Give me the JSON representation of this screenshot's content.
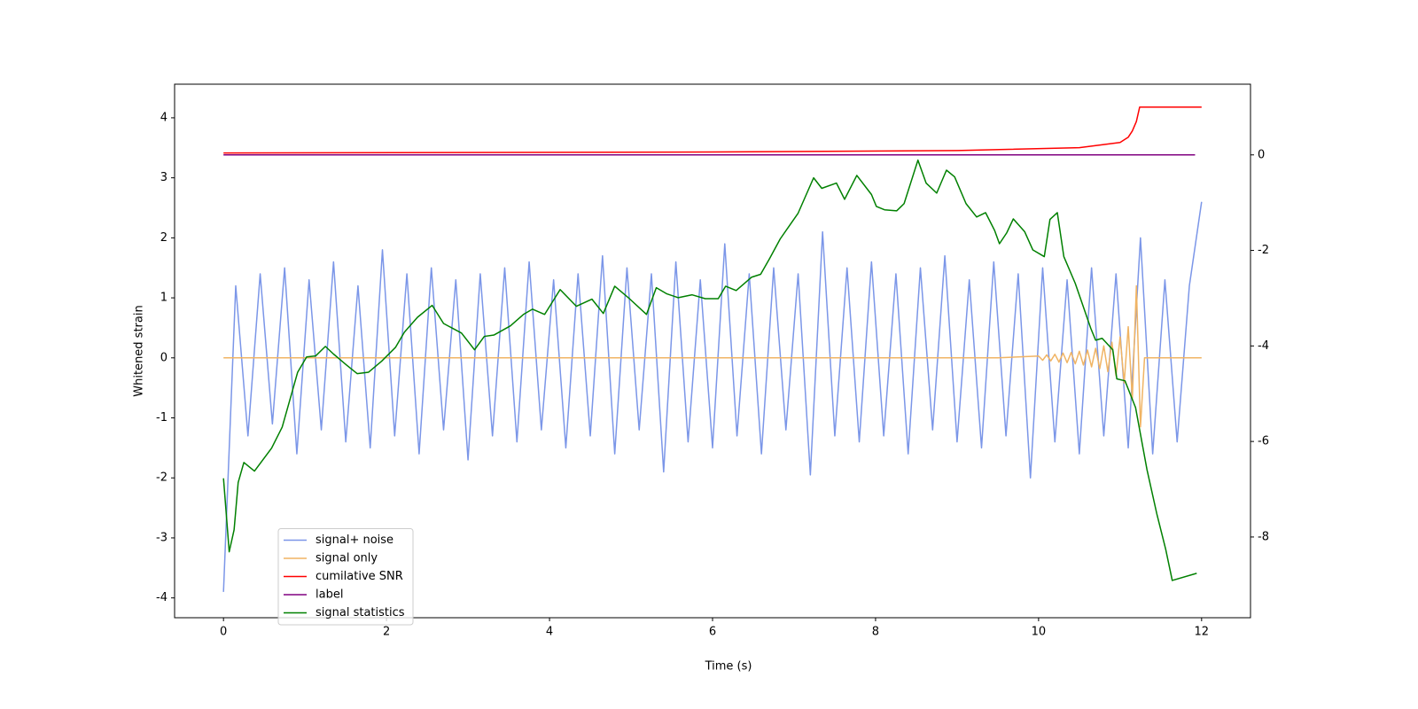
{
  "chart_data": {
    "type": "line",
    "xlabel": "Time (s)",
    "ylabel": "Whitened strain",
    "xlim": [
      -0.6,
      12.6
    ],
    "xticks": [
      0,
      2,
      4,
      6,
      8,
      10,
      12
    ],
    "ylim": [
      -4.33,
      4.56
    ],
    "yticks": [
      -4,
      -3,
      -2,
      -1,
      0,
      1,
      2,
      3,
      4
    ],
    "y2lim": [
      -9.69,
      1.48
    ],
    "y2ticks": [
      -8,
      -6,
      -4,
      -2,
      0
    ],
    "legend": "lower left",
    "series": [
      {
        "name": "signal+ noise",
        "color": "#7b96e8",
        "x": [
          0,
          0.15,
          0.3,
          0.45,
          0.6,
          0.75,
          0.9,
          1.05,
          1.2,
          1.35,
          1.5,
          1.65,
          1.8,
          1.95,
          2.1,
          2.25,
          2.4,
          2.55,
          2.7,
          2.85,
          3,
          3.15,
          3.3,
          3.45,
          3.6,
          3.75,
          3.9,
          4.05,
          4.2,
          4.35,
          4.5,
          4.65,
          4.8,
          4.95,
          5.1,
          5.25,
          5.4,
          5.55,
          5.7,
          5.85,
          6,
          6.15,
          6.3,
          6.45,
          6.6,
          6.75,
          6.9,
          7.05,
          7.2,
          7.35,
          7.5,
          7.65,
          7.8,
          7.95,
          8.1,
          8.25,
          8.4,
          8.55,
          8.7,
          8.85,
          9,
          9.15,
          9.3,
          9.45,
          9.6,
          9.75,
          9.9,
          10.05,
          10.2,
          10.35,
          10.5,
          10.65,
          10.8,
          10.95,
          11.1,
          11.25,
          11.4,
          11.55,
          11.7,
          11.85,
          12
        ],
        "values": [
          -3.9,
          1.2,
          -1.3,
          1.4,
          -1.1,
          1.5,
          -1.6,
          1.3,
          -1.2,
          1.6,
          -1.4,
          1.2,
          -1.5,
          1.8,
          -1.3,
          1.4,
          -1.6,
          1.5,
          -1.2,
          1.3,
          -1.7,
          1.4,
          -1.3,
          1.5,
          -1.4,
          1.6,
          -1.2,
          1.3,
          -1.5,
          1.4,
          -1.3,
          1.7,
          -1.6,
          1.5,
          -1.2,
          1.4,
          -1.9,
          1.6,
          -1.4,
          1.3,
          -1.5,
          1.9,
          -1.3,
          1.4,
          -1.6,
          1.5,
          -1.2,
          1.4,
          -1.95,
          2.1,
          -1.3,
          1.5,
          -1.4,
          1.6,
          -1.3,
          1.4,
          -1.6,
          1.5,
          -1.2,
          1.7,
          -1.4,
          1.3,
          -1.5,
          1.6,
          -1.3,
          1.4,
          -2.0,
          1.5,
          -1.4,
          1.3,
          -1.6,
          1.5,
          -1.3,
          1.4,
          -1.5,
          2.0,
          -1.6,
          1.3,
          -1.4,
          1.2,
          2.6
        ]
      },
      {
        "name": "signal only",
        "color": "#f0b464",
        "x": [
          0,
          9.5,
          10,
          10.05,
          10.1,
          10.15,
          10.2,
          10.25,
          10.3,
          10.35,
          10.4,
          10.45,
          10.5,
          10.55,
          10.6,
          10.65,
          10.7,
          10.75,
          10.8,
          10.85,
          10.9,
          10.95,
          11,
          11.05,
          11.1,
          11.15,
          11.2,
          11.25,
          11.3,
          12
        ],
        "values": [
          0,
          0,
          0.03,
          -0.04,
          0.05,
          -0.05,
          0.06,
          -0.07,
          0.08,
          -0.08,
          0.09,
          -0.1,
          0.11,
          -0.12,
          0.13,
          -0.15,
          0.16,
          -0.18,
          0.2,
          -0.23,
          0.26,
          -0.3,
          0.35,
          -0.42,
          0.52,
          -0.7,
          1.2,
          -1.15,
          0,
          0
        ]
      },
      {
        "name": "cumilative SNR",
        "color": "#ff0000",
        "axis": "y2",
        "x": [
          0,
          6,
          9,
          10.5,
          11,
          11.1,
          11.15,
          11.2,
          11.24,
          12
        ],
        "values": [
          0.04,
          0.06,
          0.09,
          0.15,
          0.26,
          0.37,
          0.5,
          0.7,
          1.0,
          1.0
        ]
      },
      {
        "name": "label",
        "color": "#800080",
        "axis": "y2",
        "x": [
          0,
          11.92
        ],
        "values": [
          0,
          0
        ]
      },
      {
        "name": "signal statistics",
        "color": "#008000",
        "axis": "y2",
        "x": [
          0,
          0.07,
          0.13,
          0.18,
          0.25,
          0.38,
          0.59,
          0.72,
          0.91,
          1.02,
          1.13,
          1.25,
          1.35,
          1.51,
          1.64,
          1.78,
          1.94,
          2.11,
          2.22,
          2.38,
          2.56,
          2.7,
          2.92,
          3.08,
          3.2,
          3.32,
          3.52,
          3.68,
          3.79,
          3.94,
          4.13,
          4.33,
          4.52,
          4.66,
          4.8,
          4.98,
          5.19,
          5.31,
          5.44,
          5.58,
          5.75,
          5.91,
          6.07,
          6.16,
          6.29,
          6.48,
          6.59,
          6.7,
          6.83,
          7.05,
          7.24,
          7.34,
          7.52,
          7.62,
          7.77,
          7.95,
          8.01,
          8.11,
          8.26,
          8.35,
          8.52,
          8.62,
          8.75,
          8.87,
          8.97,
          9.11,
          9.24,
          9.35,
          9.46,
          9.52,
          9.61,
          9.69,
          9.83,
          9.93,
          10.07,
          10.14,
          10.23,
          10.31,
          10.45,
          10.64,
          10.7,
          10.78,
          10.91,
          10.96,
          11.06,
          11.19,
          11.33,
          11.45,
          11.56,
          11.64,
          11.94
        ],
        "values": [
          -6.77,
          -8.31,
          -7.85,
          -6.86,
          -6.44,
          -6.62,
          -6.14,
          -5.7,
          -4.55,
          -4.23,
          -4.21,
          -4.01,
          -4.17,
          -4.4,
          -4.58,
          -4.55,
          -4.32,
          -4.03,
          -3.71,
          -3.4,
          -3.15,
          -3.53,
          -3.73,
          -4.08,
          -3.8,
          -3.77,
          -3.58,
          -3.34,
          -3.23,
          -3.34,
          -2.82,
          -3.17,
          -3.02,
          -3.32,
          -2.75,
          -3.01,
          -3.34,
          -2.78,
          -2.91,
          -2.99,
          -2.93,
          -3.01,
          -3.01,
          -2.75,
          -2.84,
          -2.56,
          -2.5,
          -2.17,
          -1.76,
          -1.22,
          -0.48,
          -0.7,
          -0.59,
          -0.93,
          -0.43,
          -0.83,
          -1.08,
          -1.15,
          -1.17,
          -1.02,
          -0.11,
          -0.59,
          -0.8,
          -0.32,
          -0.46,
          -1.02,
          -1.3,
          -1.21,
          -1.58,
          -1.86,
          -1.63,
          -1.34,
          -1.61,
          -1.99,
          -2.13,
          -1.35,
          -1.21,
          -2.13,
          -2.69,
          -3.63,
          -3.88,
          -3.84,
          -4.08,
          -4.69,
          -4.73,
          -5.29,
          -6.59,
          -7.51,
          -8.26,
          -8.91,
          -8.76
        ]
      }
    ]
  }
}
